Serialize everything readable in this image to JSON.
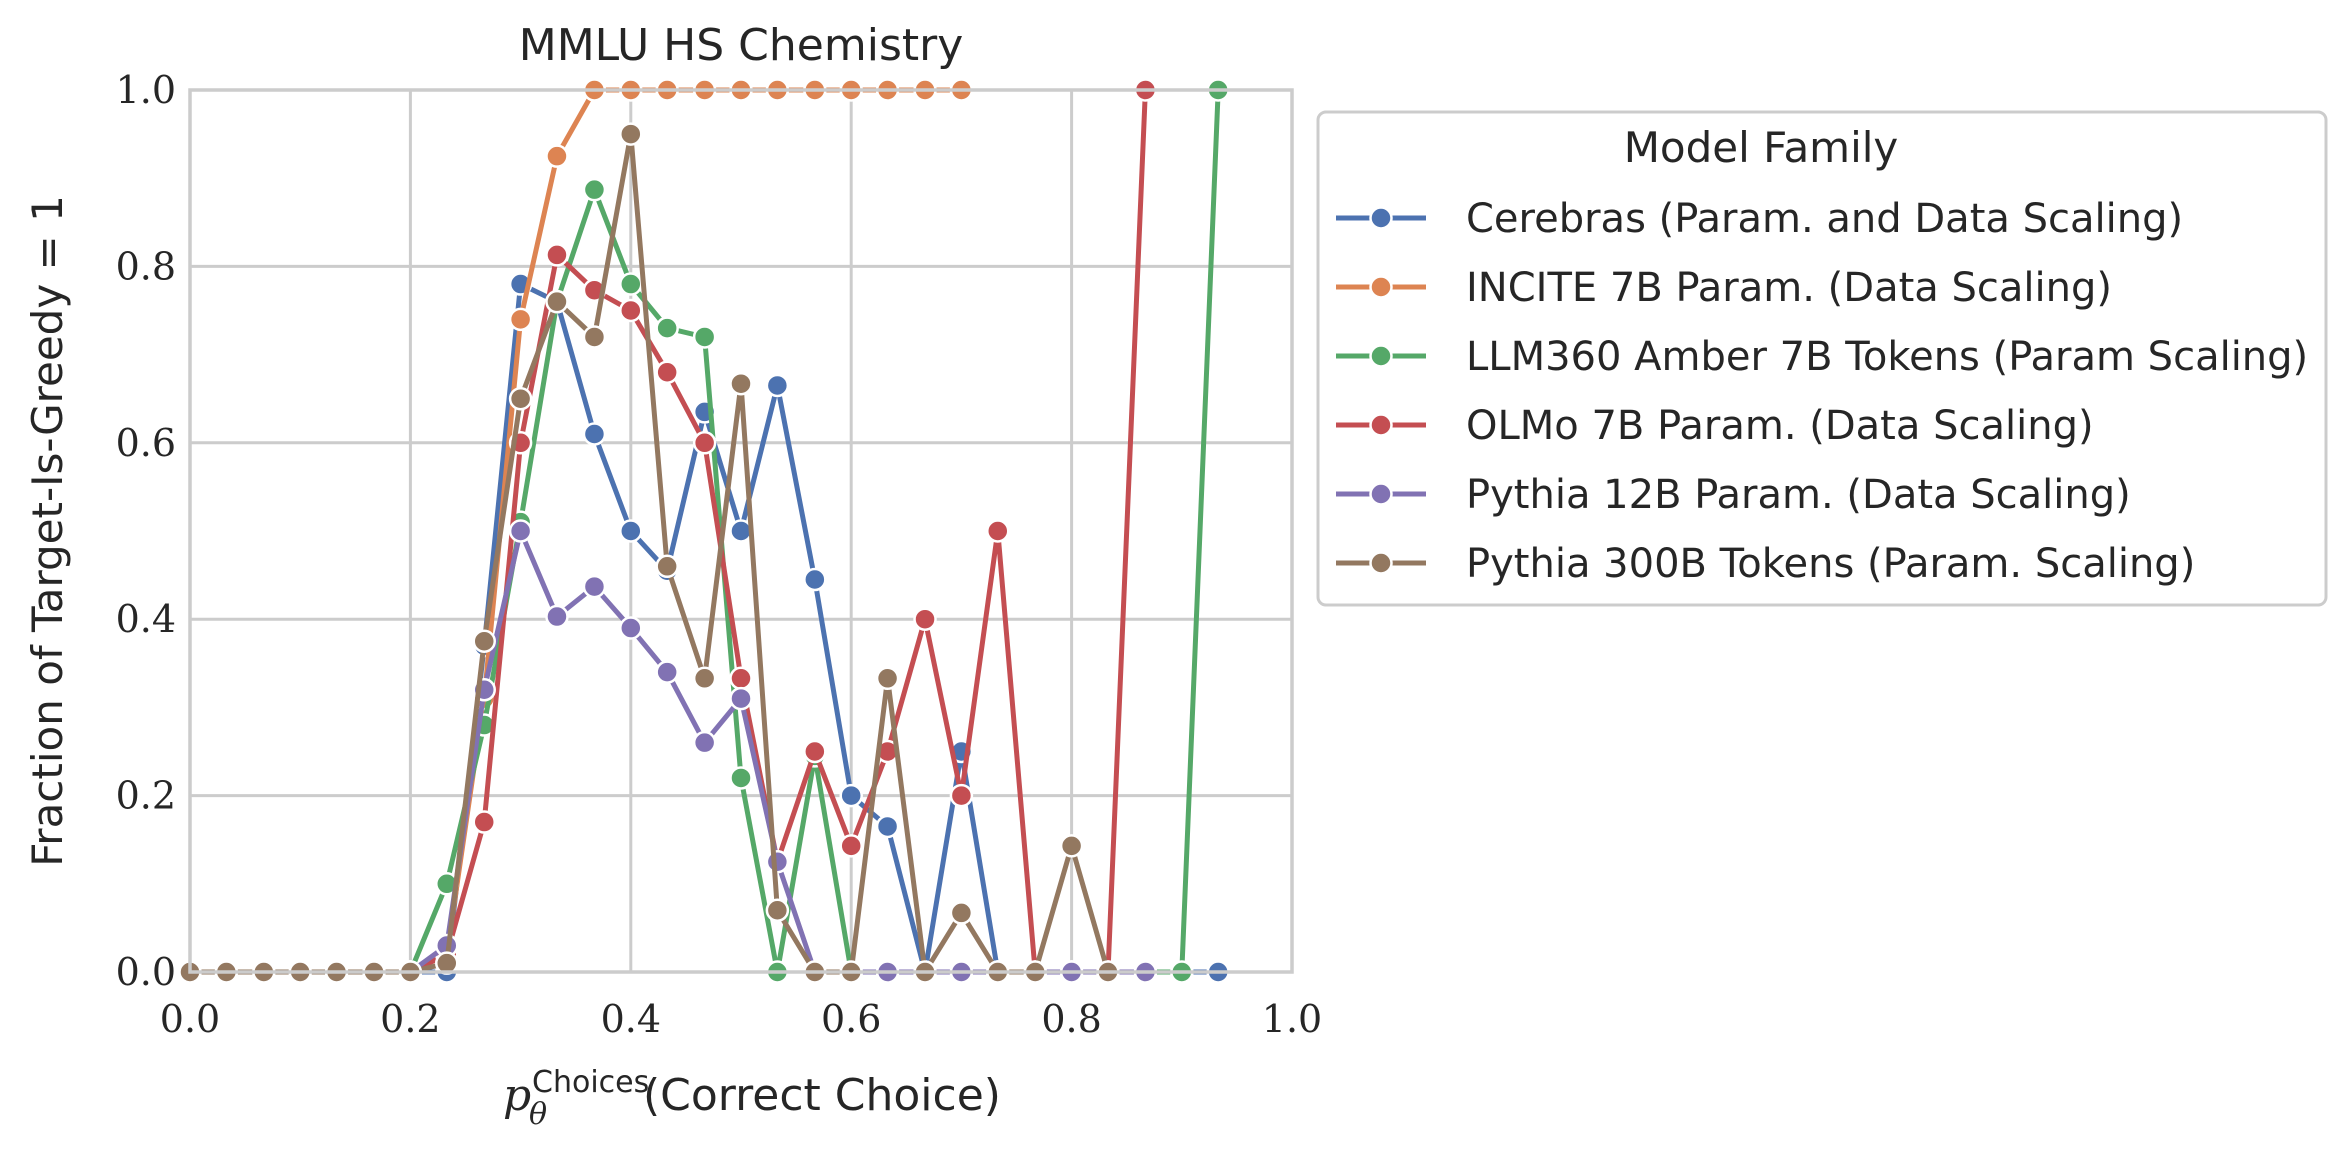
{
  "chart_data": {
    "type": "line",
    "title": "MMLU HS Chemistry",
    "xlabel_math": "p",
    "xlabel_sub": "θ",
    "xlabel_sup": "Choices",
    "xlabel_rest": "(Correct Choice)",
    "ylabel": "Fraction of Target-Is-Greedy = 1",
    "xlim": [
      0.0,
      1.0
    ],
    "ylim": [
      0.0,
      1.0
    ],
    "xticks": [
      "0.0",
      "0.2",
      "0.4",
      "0.6",
      "0.8",
      "1.0"
    ],
    "yticks": [
      "0.0",
      "0.2",
      "0.4",
      "0.6",
      "0.8",
      "1.0"
    ],
    "grid": true,
    "legend_title": "Model Family",
    "legend_placement": "outside-upper-right",
    "series": [
      {
        "name": "Cerebras (Param. and Data Scaling)",
        "color": "#4C72B0",
        "x": [
          0.0,
          0.033,
          0.067,
          0.1,
          0.133,
          0.167,
          0.2,
          0.233,
          0.267,
          0.3,
          0.333,
          0.367,
          0.4,
          0.433,
          0.467,
          0.5,
          0.533,
          0.567,
          0.6,
          0.633,
          0.667,
          0.7,
          0.733,
          0.767,
          0.8,
          0.833,
          0.867,
          0.9,
          0.933
        ],
        "y": [
          0.0,
          0.0,
          0.0,
          0.0,
          0.0,
          0.0,
          0.0,
          0.0,
          0.37,
          0.78,
          0.76,
          0.61,
          0.5,
          0.455,
          0.635,
          0.5,
          0.665,
          0.445,
          0.2,
          0.165,
          0.0,
          0.25,
          0.0,
          0.0,
          0.0,
          0.0,
          0.0,
          0.0,
          0.0
        ]
      },
      {
        "name": "INCITE 7B Param. (Data Scaling)",
        "color": "#DD8452",
        "x": [
          0.0,
          0.033,
          0.067,
          0.1,
          0.133,
          0.167,
          0.2,
          0.233,
          0.267,
          0.3,
          0.333,
          0.367,
          0.4,
          0.433,
          0.467,
          0.5,
          0.533,
          0.567,
          0.6,
          0.633,
          0.667,
          0.7
        ],
        "y": [
          0.0,
          0.0,
          0.0,
          0.0,
          0.0,
          0.0,
          0.0,
          0.02,
          0.31,
          0.74,
          0.925,
          1.0,
          1.0,
          1.0,
          1.0,
          1.0,
          1.0,
          1.0,
          1.0,
          1.0,
          1.0,
          1.0
        ]
      },
      {
        "name": "LLM360 Amber 7B Tokens (Param Scaling)",
        "color": "#55A868",
        "x": [
          0.0,
          0.033,
          0.067,
          0.1,
          0.133,
          0.167,
          0.2,
          0.233,
          0.267,
          0.3,
          0.333,
          0.367,
          0.4,
          0.433,
          0.467,
          0.5,
          0.533,
          0.567,
          0.6,
          0.633,
          0.667,
          0.7,
          0.733,
          0.767,
          0.8,
          0.833,
          0.867,
          0.9,
          0.933
        ],
        "y": [
          0.0,
          0.0,
          0.0,
          0.0,
          0.0,
          0.0,
          0.0,
          0.1,
          0.28,
          0.51,
          0.76,
          0.887,
          0.78,
          0.73,
          0.72,
          0.22,
          0.0,
          0.245,
          0.0,
          0.0,
          0.0,
          0.0,
          0.0,
          0.0,
          0.0,
          0.0,
          0.0,
          0.0,
          1.0
        ]
      },
      {
        "name": "OLMo 7B Param. (Data Scaling)",
        "color": "#C44E52",
        "x": [
          0.0,
          0.033,
          0.067,
          0.1,
          0.133,
          0.167,
          0.2,
          0.233,
          0.267,
          0.3,
          0.333,
          0.367,
          0.4,
          0.433,
          0.467,
          0.5,
          0.533,
          0.567,
          0.6,
          0.633,
          0.667,
          0.7,
          0.733,
          0.767,
          0.8,
          0.833,
          0.867
        ],
        "y": [
          0.0,
          0.0,
          0.0,
          0.0,
          0.0,
          0.0,
          0.0,
          0.02,
          0.17,
          0.6,
          0.813,
          0.773,
          0.75,
          0.68,
          0.6,
          0.333,
          0.125,
          0.25,
          0.143,
          0.25,
          0.4,
          0.2,
          0.5,
          0.0,
          0.0,
          0.0,
          1.0
        ]
      },
      {
        "name": "Pythia 12B Param. (Data Scaling)",
        "color": "#8172B3",
        "x": [
          0.0,
          0.033,
          0.067,
          0.1,
          0.133,
          0.167,
          0.2,
          0.233,
          0.267,
          0.3,
          0.333,
          0.367,
          0.4,
          0.433,
          0.467,
          0.5,
          0.533,
          0.567,
          0.6,
          0.633,
          0.667,
          0.7,
          0.733,
          0.767,
          0.8,
          0.833,
          0.867
        ],
        "y": [
          0.0,
          0.0,
          0.0,
          0.0,
          0.0,
          0.0,
          0.0,
          0.03,
          0.32,
          0.5,
          0.403,
          0.437,
          0.39,
          0.34,
          0.26,
          0.31,
          0.125,
          0.0,
          0.0,
          0.0,
          0.0,
          0.0,
          0.0,
          0.0,
          0.0,
          0.0,
          0.0
        ]
      },
      {
        "name": "Pythia 300B Tokens (Param. Scaling)",
        "color": "#937860",
        "x": [
          0.0,
          0.033,
          0.067,
          0.1,
          0.133,
          0.167,
          0.2,
          0.233,
          0.267,
          0.3,
          0.333,
          0.367,
          0.4,
          0.433,
          0.467,
          0.5,
          0.533,
          0.567,
          0.6,
          0.633,
          0.667,
          0.7,
          0.733,
          0.767,
          0.8,
          0.833
        ],
        "y": [
          0.0,
          0.0,
          0.0,
          0.0,
          0.0,
          0.0,
          0.0,
          0.01,
          0.375,
          0.65,
          0.76,
          0.72,
          0.95,
          0.46,
          0.333,
          0.667,
          0.07,
          0.0,
          0.0,
          0.333,
          0.0,
          0.067,
          0.0,
          0.0,
          0.143,
          0.0
        ]
      }
    ]
  }
}
